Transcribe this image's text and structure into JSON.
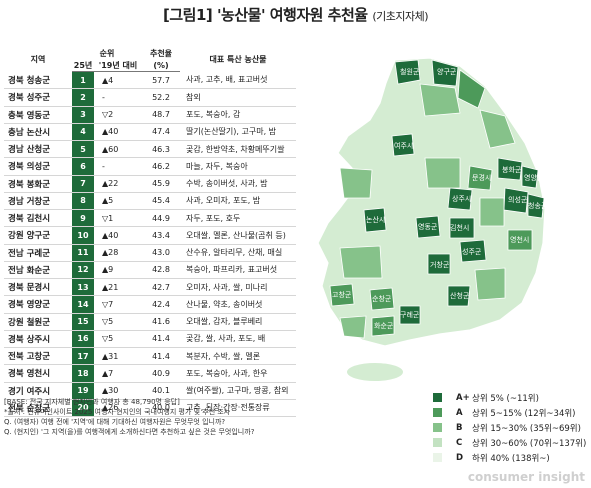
{
  "title": "[그림1] '농산물' 여행자원 추천율",
  "subtitle": "(기초지자체)",
  "table": {
    "col_region": "지역",
    "col_rank": "순위",
    "col_rank_25": "25년",
    "col_rank_19": "'19년 대비",
    "col_rate": "추천율",
    "col_rate_unit": "(%)",
    "col_products": "대표 특산 농산물"
  },
  "chart_data": {
    "type": "table",
    "rows": [
      {
        "region": "경북 청송군",
        "rank": "1",
        "change": "▲4",
        "rate": "57.7",
        "products": "사과, 고추, 배, 표고버섯"
      },
      {
        "region": "경북 성주군",
        "rank": "2",
        "change": "-",
        "rate": "52.2",
        "products": "참외"
      },
      {
        "region": "충북 영동군",
        "rank": "3",
        "change": "▽2",
        "rate": "48.7",
        "products": "포도, 복숭아, 감"
      },
      {
        "region": "충남 논산시",
        "rank": "4",
        "change": "▲40",
        "rate": "47.4",
        "products": "딸기(논산딸기), 고구마, 밤"
      },
      {
        "region": "경남 산청군",
        "rank": "5",
        "change": "▲60",
        "rate": "46.3",
        "products": "곶감, 한방약초, 차황메뚜기쌀"
      },
      {
        "region": "경북 의성군",
        "rank": "6",
        "change": "-",
        "rate": "46.2",
        "products": "마늘, 자두, 복숭아"
      },
      {
        "region": "경북 봉화군",
        "rank": "7",
        "change": "▲22",
        "rate": "45.9",
        "products": "수박, 송이버섯, 사과, 밤"
      },
      {
        "region": "경남 거창군",
        "rank": "8",
        "change": "▲5",
        "rate": "45.4",
        "products": "사과, 오미자, 포도, 밤"
      },
      {
        "region": "경북 김천시",
        "rank": "9",
        "change": "▽1",
        "rate": "44.9",
        "products": "자두, 포도, 호두"
      },
      {
        "region": "강원 양구군",
        "rank": "10",
        "change": "▲40",
        "rate": "43.4",
        "products": "오대쌀, 멜론, 산나물(곰취 등)"
      },
      {
        "region": "전남 구례군",
        "rank": "11",
        "change": "▲28",
        "rate": "43.0",
        "products": "산수유, 알타리무, 산채, 매실"
      },
      {
        "region": "전남 화순군",
        "rank": "12",
        "change": "▲9",
        "rate": "42.8",
        "products": "복숭아, 파프리카, 표고버섯"
      },
      {
        "region": "경북 문경시",
        "rank": "13",
        "change": "▲21",
        "rate": "42.7",
        "products": "오미자, 사과, 쌀, 미나리"
      },
      {
        "region": "경북 영양군",
        "rank": "14",
        "change": "▽7",
        "rate": "42.4",
        "products": "산나물, 약초, 송이버섯"
      },
      {
        "region": "강원 철원군",
        "rank": "15",
        "change": "▽5",
        "rate": "41.6",
        "products": "오대쌀, 감자, 블루베리"
      },
      {
        "region": "경북 상주시",
        "rank": "16",
        "change": "▽5",
        "rate": "41.4",
        "products": "곶감, 쌀, 사과, 포도, 배"
      },
      {
        "region": "전북 고창군",
        "rank": "17",
        "change": "▲31",
        "rate": "41.4",
        "products": "복분자, 수박, 쌀, 멜론"
      },
      {
        "region": "경북 영천시",
        "rank": "18",
        "change": "▲7",
        "rate": "40.9",
        "products": "포도, 복숭아, 사과, 한우"
      },
      {
        "region": "경기 여주시",
        "rank": "19",
        "change": "▲30",
        "rate": "40.1",
        "products": "쌀(여주쌀), 고구마, 땅콩, 참외"
      },
      {
        "region": "전북 순창군",
        "rank": "20",
        "change": "▲26",
        "rate": "40.0",
        "products": "고추, 된장·간장·전통장류"
      }
    ]
  },
  "notes": [
    "[BASE: 전국 지자체별 현지인과 여행자 총 48,790명 응답]",
    "*출처 : 컨슈머인사이트 2025 여행자·현지인의 국내여행지 평가 및 추천 조사",
    "Q. (여행자) 여행 전에 '지역'에 대해 기대하신 여행자원은 무엇무엇 입니까?",
    "Q. (현지인) '그 지역(을)를 여행객에게 소개하신다면 추천하고 싶은 것은 무엇입니까?"
  ],
  "legend": [
    {
      "grade": "A+",
      "label": "상위 5% (~11위)",
      "color": "#1e6b3a"
    },
    {
      "grade": "A",
      "label": "상위 5~15% (12위~34위)",
      "color": "#4d9a5a"
    },
    {
      "grade": "B",
      "label": "상위 15~30% (35위~69위)",
      "color": "#86c28a"
    },
    {
      "grade": "C",
      "label": "상위 30~60% (70위~137위)",
      "color": "#c3e2c2"
    },
    {
      "grade": "D",
      "label": "하위 40% (138위~)",
      "color": "#eaf4e8"
    }
  ],
  "map_labels": [
    "철원군",
    "양구군",
    "여주시",
    "봉화군",
    "영양군",
    "문경시",
    "의성군",
    "청송군",
    "상주시",
    "영천시",
    "논산시",
    "영동군",
    "김천시",
    "성주군",
    "거창군",
    "고창군",
    "순창군",
    "구례군",
    "산청군",
    "화순군"
  ],
  "logo_text": "consumer insight"
}
